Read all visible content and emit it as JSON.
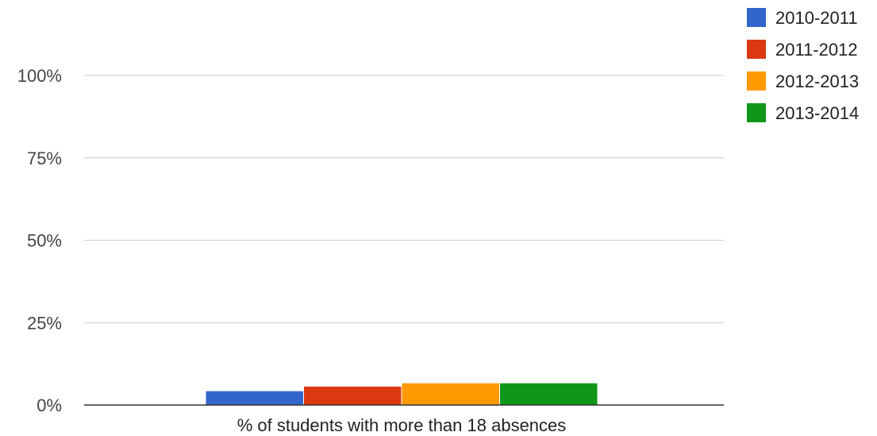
{
  "chart_data": {
    "type": "bar",
    "categories": [
      "% of students with more than 18 absences"
    ],
    "series": [
      {
        "name": "2010-2011",
        "color": "#3366cc",
        "values": [
          4.2
        ]
      },
      {
        "name": "2011-2012",
        "color": "#dc3912",
        "values": [
          5.6
        ]
      },
      {
        "name": "2012-2013",
        "color": "#ff9900",
        "values": [
          6.6
        ]
      },
      {
        "name": "2013-2014",
        "color": "#109618",
        "values": [
          6.6
        ]
      }
    ],
    "title": "",
    "xlabel": "",
    "ylabel": "",
    "ylim": [
      0,
      100
    ],
    "yticks": [
      "0%",
      "25%",
      "50%",
      "75%",
      "100%"
    ],
    "ytick_values": [
      0,
      25,
      50,
      75,
      100
    ],
    "grid": true,
    "legend_position": "top-right"
  }
}
